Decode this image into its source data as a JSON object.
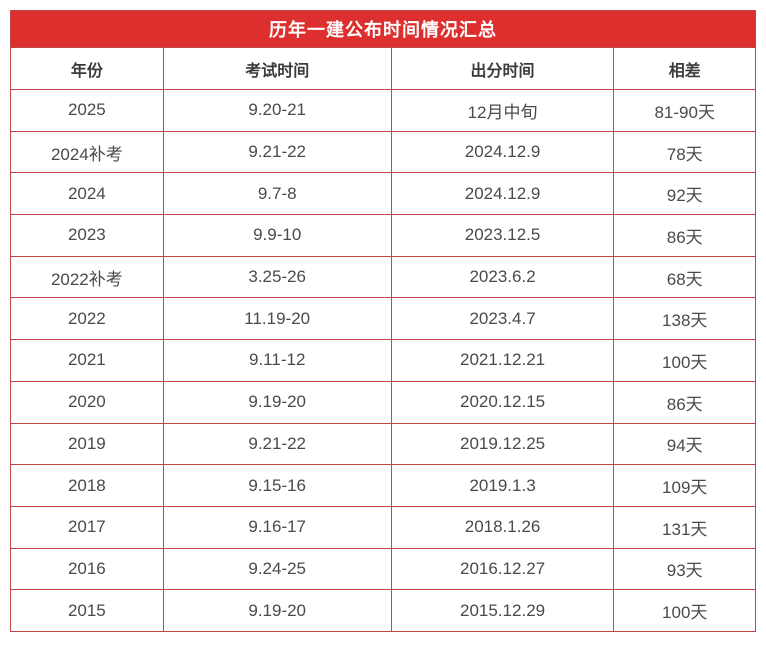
{
  "chart_data": {
    "type": "table",
    "title": "历年一建公布时间情况汇总",
    "columns": [
      "年份",
      "考试时间",
      "出分时间",
      "相差"
    ],
    "rows": [
      [
        "2025",
        "9.20-21",
        "12月中旬",
        "81-90天"
      ],
      [
        "2024补考",
        "9.21-22",
        "2024.12.9",
        "78天"
      ],
      [
        "2024",
        "9.7-8",
        "2024.12.9",
        "92天"
      ],
      [
        "2023",
        "9.9-10",
        "2023.12.5",
        "86天"
      ],
      [
        "2022补考",
        "3.25-26",
        "2023.6.2",
        "68天"
      ],
      [
        "2022",
        "11.19-20",
        "2023.4.7",
        "138天"
      ],
      [
        "2021",
        "9.11-12",
        "2021.12.21",
        "100天"
      ],
      [
        "2020",
        "9.19-20",
        "2020.12.15",
        "86天"
      ],
      [
        "2019",
        "9.21-22",
        "2019.12.25",
        "94天"
      ],
      [
        "2018",
        "9.15-16",
        "2019.1.3",
        "109天"
      ],
      [
        "2017",
        "9.16-17",
        "2018.1.26",
        "131天"
      ],
      [
        "2016",
        "9.24-25",
        "2016.12.27",
        "93天"
      ],
      [
        "2015",
        "9.19-20",
        "2015.12.29",
        "100天"
      ]
    ]
  },
  "colors": {
    "header_bg": "#dc2f2e",
    "border": "#bf4744",
    "title_text": "#ffffff",
    "head_text": "#3b3b3b",
    "body_text": "#4a4a4a"
  }
}
